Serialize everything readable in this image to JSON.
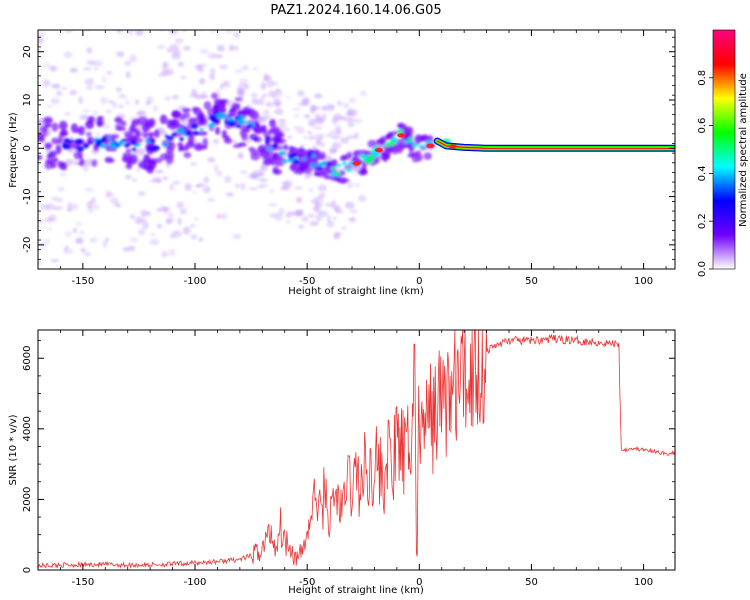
{
  "title": "PAZ1.2024.160.14.06.G05",
  "chart_data": [
    {
      "type": "heatmap",
      "xlabel": "Height of straight line (km)",
      "ylabel": "Frequency (Hz)",
      "xlim": [
        -170,
        114
      ],
      "ylim": [
        -25,
        24.5
      ],
      "xticks": [
        -150,
        -100,
        -50,
        0,
        50,
        100
      ],
      "yticks": [
        -20,
        -10,
        0,
        10,
        20
      ],
      "colorbar": {
        "label": "Normalized spectral amplitude",
        "range": [
          0,
          1
        ],
        "ticks": [
          0.0,
          0.2,
          0.4,
          0.6,
          0.8
        ],
        "colormap": [
          "#ffffff",
          "#7000ff",
          "#0000ff",
          "#00ffff",
          "#00ff00",
          "#ffff00",
          "#ff0000",
          "#ff0080"
        ]
      },
      "ridge": [
        {
          "x": -168,
          "y": 1.0
        },
        {
          "x": -160,
          "y": 0.5
        },
        {
          "x": -150,
          "y": 1.0
        },
        {
          "x": -140,
          "y": 1.5
        },
        {
          "x": -130,
          "y": 1.0
        },
        {
          "x": -120,
          "y": 0.5
        },
        {
          "x": -110,
          "y": 2.0
        },
        {
          "x": -100,
          "y": 4.0
        },
        {
          "x": -92,
          "y": 6.0
        },
        {
          "x": -85,
          "y": 6.0
        },
        {
          "x": -78,
          "y": 5.0
        },
        {
          "x": -72,
          "y": 2.5
        },
        {
          "x": -66,
          "y": 0.5
        },
        {
          "x": -60,
          "y": -2.0
        },
        {
          "x": -55,
          "y": -2.5
        },
        {
          "x": -50,
          "y": -2.0
        },
        {
          "x": -45,
          "y": -3.0
        },
        {
          "x": -40,
          "y": -4.0
        },
        {
          "x": -35,
          "y": -4.5
        },
        {
          "x": -30,
          "y": -3.5
        },
        {
          "x": -25,
          "y": -2.5
        },
        {
          "x": -20,
          "y": -1.0
        },
        {
          "x": -15,
          "y": 0.5
        },
        {
          "x": -10,
          "y": 2.0
        },
        {
          "x": -7,
          "y": 3.0
        },
        {
          "x": -4,
          "y": 1.0
        },
        {
          "x": 0,
          "y": -0.5
        },
        {
          "x": 5,
          "y": 0.5
        },
        {
          "x": 8,
          "y": 1.5
        },
        {
          "x": 12,
          "y": 0.5
        },
        {
          "x": 20,
          "y": 0.2
        },
        {
          "x": 30,
          "y": 0.0
        },
        {
          "x": 114,
          "y": 0.0
        }
      ]
    },
    {
      "type": "line",
      "xlabel": "Height of straight line (km)",
      "ylabel": "SNR (10 * v/v)",
      "xlim": [
        -170,
        114
      ],
      "ylim": [
        0,
        6800
      ],
      "xticks": [
        -150,
        -100,
        -50,
        0,
        50,
        100
      ],
      "yticks": [
        0,
        2000,
        4000,
        6000
      ],
      "color": "#ee3333",
      "series": [
        {
          "x": [
            -170,
            -160,
            -150,
            -140,
            -130,
            -120,
            -110,
            -100,
            -90,
            -80,
            -75,
            -70,
            -68,
            -66,
            -64,
            -62,
            -60,
            -58,
            -56,
            -54,
            -52,
            -50,
            -48,
            -46,
            -44,
            -42,
            -40,
            -38,
            -36,
            -34,
            -32,
            -30,
            -28,
            -26,
            -24,
            -22,
            -20,
            -18,
            -16,
            -14,
            -12,
            -10,
            -8,
            -6,
            -4,
            -2,
            0,
            2,
            4,
            6,
            8,
            10,
            15,
            20,
            25,
            30,
            35,
            40,
            50,
            60,
            70,
            80,
            89,
            90,
            95,
            100,
            105,
            110,
            114
          ],
          "values": [
            120,
            140,
            150,
            160,
            140,
            150,
            170,
            200,
            240,
            300,
            400,
            600,
            900,
            1100,
            600,
            1300,
            800,
            900,
            400,
            300,
            600,
            1000,
            1600,
            2200,
            1500,
            2400,
            1300,
            2100,
            2000,
            1600,
            2700,
            2300,
            2800,
            2200,
            3000,
            2700,
            3200,
            2900,
            2400,
            3300,
            2800,
            3600,
            3400,
            3100,
            3800,
            3500,
            3800,
            4000,
            4200,
            4400,
            4600,
            4800,
            5100,
            5500,
            5900,
            6200,
            6400,
            6500,
            6500,
            6550,
            6500,
            6450,
            6400,
            3400,
            3450,
            3400,
            3350,
            3300,
            3300
          ]
        }
      ]
    }
  ]
}
